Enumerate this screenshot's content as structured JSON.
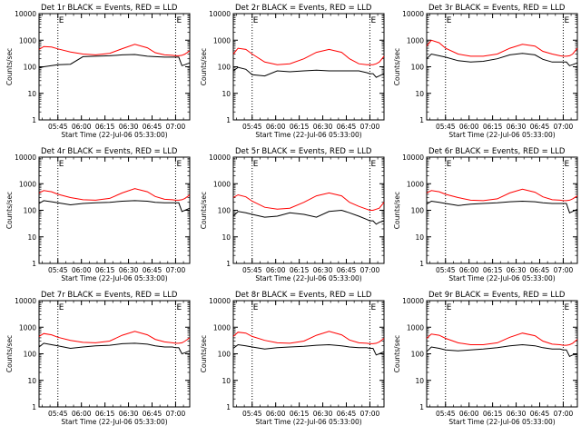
{
  "figure": {
    "y_tick_labels": [
      "1",
      "10",
      "100",
      "1000",
      "10000"
    ],
    "x_tick_labels": [
      "05:45",
      "06:00",
      "06:15",
      "06:30",
      "06:45",
      "07:00"
    ],
    "ylabel": "Counts/sec",
    "xlabel": "Start Time (22-Jul-06 05:33:00)",
    "event_color": "#000000",
    "lld_color": "#ff0000",
    "marker_line_times": [
      "05:45",
      "07:00"
    ],
    "marker_labels": [
      "E",
      "E"
    ]
  },
  "chart_data": [
    {
      "type": "line",
      "title": "Det 1r BLACK = Events, RED = LLD",
      "x_unit": "minutes since 05:33:00",
      "ylim": [
        1,
        10000
      ],
      "yscale": "log",
      "series": [
        {
          "name": "Events",
          "x": [
            0,
            3,
            8,
            12,
            20,
            28,
            36,
            45,
            53,
            61,
            69,
            74,
            80,
            85,
            87,
            89,
            91,
            93,
            96
          ],
          "y": [
            90,
            100,
            110,
            120,
            125,
            240,
            250,
            260,
            280,
            290,
            250,
            240,
            230,
            230,
            230,
            230,
            110,
            120,
            140
          ]
        },
        {
          "name": "LLD",
          "x": [
            0,
            3,
            8,
            12,
            20,
            28,
            36,
            45,
            53,
            61,
            69,
            74,
            80,
            85,
            87,
            89,
            91,
            93,
            96
          ],
          "y": [
            450,
            580,
            550,
            470,
            360,
            300,
            280,
            320,
            480,
            700,
            520,
            340,
            280,
            270,
            260,
            260,
            270,
            300,
            400
          ]
        }
      ]
    },
    {
      "type": "line",
      "title": "Det 2r BLACK = Events, RED = LLD",
      "x_unit": "minutes since 05:33:00",
      "ylim": [
        1,
        10000
      ],
      "yscale": "log",
      "series": [
        {
          "name": "Events",
          "x": [
            0,
            3,
            8,
            12,
            20,
            28,
            36,
            45,
            53,
            61,
            69,
            74,
            80,
            85,
            87,
            89,
            91,
            93,
            96
          ],
          "y": [
            70,
            95,
            80,
            50,
            45,
            70,
            65,
            70,
            75,
            70,
            70,
            70,
            70,
            60,
            55,
            55,
            40,
            45,
            55
          ]
        },
        {
          "name": "LLD",
          "x": [
            0,
            3,
            8,
            12,
            20,
            28,
            36,
            45,
            53,
            61,
            69,
            74,
            80,
            85,
            87,
            89,
            91,
            93,
            96
          ],
          "y": [
            300,
            500,
            450,
            300,
            150,
            120,
            130,
            200,
            350,
            450,
            350,
            200,
            130,
            120,
            120,
            120,
            130,
            150,
            250
          ]
        }
      ]
    },
    {
      "type": "line",
      "title": "Det 3r BLACK = Events, RED = LLD",
      "x_unit": "minutes since 05:33:00",
      "ylim": [
        1,
        10000
      ],
      "yscale": "log",
      "series": [
        {
          "name": "Events",
          "x": [
            0,
            3,
            8,
            12,
            20,
            28,
            36,
            45,
            53,
            61,
            69,
            74,
            80,
            85,
            87,
            89,
            91,
            93,
            96
          ],
          "y": [
            200,
            300,
            260,
            230,
            170,
            150,
            160,
            200,
            280,
            320,
            280,
            190,
            150,
            150,
            150,
            150,
            110,
            120,
            140
          ]
        },
        {
          "name": "LLD",
          "x": [
            0,
            3,
            8,
            12,
            20,
            28,
            36,
            45,
            53,
            61,
            69,
            74,
            80,
            85,
            87,
            89,
            91,
            93,
            96
          ],
          "y": [
            600,
            1000,
            800,
            500,
            300,
            250,
            250,
            300,
            500,
            700,
            600,
            380,
            300,
            260,
            250,
            250,
            260,
            300,
            500
          ]
        }
      ]
    },
    {
      "type": "line",
      "title": "Det 4r BLACK = Events, RED = LLD",
      "x_unit": "minutes since 05:33:00",
      "ylim": [
        1,
        10000
      ],
      "yscale": "log",
      "series": [
        {
          "name": "Events",
          "x": [
            0,
            3,
            8,
            12,
            20,
            28,
            36,
            45,
            53,
            61,
            69,
            74,
            80,
            85,
            87,
            89,
            91,
            93,
            96
          ],
          "y": [
            180,
            230,
            210,
            190,
            160,
            180,
            190,
            200,
            220,
            230,
            220,
            200,
            190,
            190,
            190,
            190,
            90,
            100,
            120
          ]
        },
        {
          "name": "LLD",
          "x": [
            0,
            3,
            8,
            12,
            20,
            28,
            36,
            45,
            53,
            61,
            69,
            74,
            80,
            85,
            87,
            89,
            91,
            93,
            96
          ],
          "y": [
            450,
            550,
            500,
            400,
            300,
            250,
            240,
            280,
            450,
            650,
            500,
            330,
            260,
            250,
            240,
            240,
            250,
            280,
            380
          ]
        }
      ]
    },
    {
      "type": "line",
      "title": "Det 5r BLACK = Events, RED = LLD",
      "x_unit": "minutes since 05:33:00",
      "ylim": [
        1,
        10000
      ],
      "yscale": "log",
      "series": [
        {
          "name": "Events",
          "x": [
            0,
            3,
            8,
            12,
            20,
            28,
            36,
            45,
            53,
            61,
            69,
            74,
            80,
            85,
            87,
            89,
            91,
            93,
            96
          ],
          "y": [
            60,
            90,
            80,
            70,
            55,
            60,
            80,
            70,
            55,
            90,
            100,
            80,
            60,
            45,
            40,
            40,
            30,
            35,
            40
          ]
        },
        {
          "name": "LLD",
          "x": [
            0,
            3,
            8,
            12,
            20,
            28,
            36,
            45,
            53,
            61,
            69,
            74,
            80,
            85,
            87,
            89,
            91,
            93,
            96
          ],
          "y": [
            300,
            380,
            320,
            220,
            130,
            110,
            120,
            200,
            350,
            450,
            350,
            200,
            140,
            110,
            100,
            100,
            110,
            120,
            200
          ]
        }
      ]
    },
    {
      "type": "line",
      "title": "Det 6r BLACK = Events, RED = LLD",
      "x_unit": "minutes since 05:33:00",
      "ylim": [
        1,
        10000
      ],
      "yscale": "log",
      "series": [
        {
          "name": "Events",
          "x": [
            0,
            3,
            8,
            12,
            20,
            28,
            36,
            45,
            53,
            61,
            69,
            74,
            80,
            85,
            87,
            89,
            91,
            93,
            96
          ],
          "y": [
            170,
            220,
            200,
            180,
            150,
            170,
            180,
            190,
            210,
            220,
            210,
            190,
            180,
            180,
            180,
            180,
            80,
            90,
            110
          ]
        },
        {
          "name": "LLD",
          "x": [
            0,
            3,
            8,
            12,
            20,
            28,
            36,
            45,
            53,
            61,
            69,
            74,
            80,
            85,
            87,
            89,
            91,
            93,
            96
          ],
          "y": [
            450,
            550,
            500,
            400,
            300,
            240,
            230,
            270,
            450,
            620,
            480,
            320,
            250,
            240,
            230,
            230,
            240,
            270,
            350
          ]
        }
      ]
    },
    {
      "type": "line",
      "title": "Det 7r BLACK = Events, RED = LLD",
      "x_unit": "minutes since 05:33:00",
      "ylim": [
        1,
        10000
      ],
      "yscale": "log",
      "series": [
        {
          "name": "Events",
          "x": [
            0,
            3,
            8,
            12,
            20,
            28,
            36,
            45,
            53,
            61,
            69,
            74,
            80,
            85,
            87,
            89,
            91,
            93,
            96
          ],
          "y": [
            180,
            250,
            220,
            200,
            160,
            180,
            200,
            210,
            240,
            250,
            230,
            200,
            180,
            180,
            170,
            170,
            100,
            110,
            130
          ]
        },
        {
          "name": "LLD",
          "x": [
            0,
            3,
            8,
            12,
            20,
            28,
            36,
            45,
            53,
            61,
            69,
            74,
            80,
            85,
            87,
            89,
            91,
            93,
            96
          ],
          "y": [
            450,
            580,
            520,
            420,
            320,
            270,
            260,
            300,
            500,
            700,
            520,
            350,
            280,
            260,
            250,
            250,
            260,
            300,
            400
          ]
        }
      ]
    },
    {
      "type": "line",
      "title": "Det 8r BLACK = Events, RED = LLD",
      "x_unit": "minutes since 05:33:00",
      "ylim": [
        1,
        10000
      ],
      "yscale": "log",
      "series": [
        {
          "name": "Events",
          "x": [
            0,
            3,
            8,
            12,
            20,
            28,
            36,
            45,
            53,
            61,
            69,
            74,
            80,
            85,
            87,
            89,
            91,
            93,
            96
          ],
          "y": [
            160,
            220,
            200,
            180,
            150,
            170,
            180,
            190,
            210,
            220,
            200,
            180,
            170,
            170,
            160,
            160,
            90,
            100,
            120
          ]
        },
        {
          "name": "LLD",
          "x": [
            0,
            3,
            8,
            12,
            20,
            28,
            36,
            45,
            53,
            61,
            69,
            74,
            80,
            85,
            87,
            89,
            91,
            93,
            96
          ],
          "y": [
            450,
            650,
            600,
            450,
            320,
            260,
            250,
            300,
            500,
            700,
            520,
            330,
            260,
            250,
            240,
            240,
            250,
            280,
            380
          ]
        }
      ]
    },
    {
      "type": "line",
      "title": "Det 9r BLACK = Events, RED = LLD",
      "x_unit": "minutes since 05:33:00",
      "ylim": [
        1,
        10000
      ],
      "yscale": "log",
      "series": [
        {
          "name": "Events",
          "x": [
            0,
            3,
            8,
            12,
            20,
            28,
            36,
            45,
            53,
            61,
            69,
            74,
            80,
            85,
            87,
            89,
            91,
            93,
            96
          ],
          "y": [
            120,
            180,
            160,
            140,
            130,
            140,
            150,
            170,
            200,
            220,
            200,
            170,
            150,
            150,
            140,
            140,
            80,
            90,
            100
          ]
        },
        {
          "name": "LLD",
          "x": [
            0,
            3,
            8,
            12,
            20,
            28,
            36,
            45,
            53,
            61,
            69,
            74,
            80,
            85,
            87,
            89,
            91,
            93,
            96
          ],
          "y": [
            380,
            550,
            500,
            380,
            260,
            220,
            220,
            260,
            420,
            600,
            480,
            300,
            230,
            220,
            210,
            210,
            220,
            250,
            350
          ]
        }
      ]
    }
  ]
}
